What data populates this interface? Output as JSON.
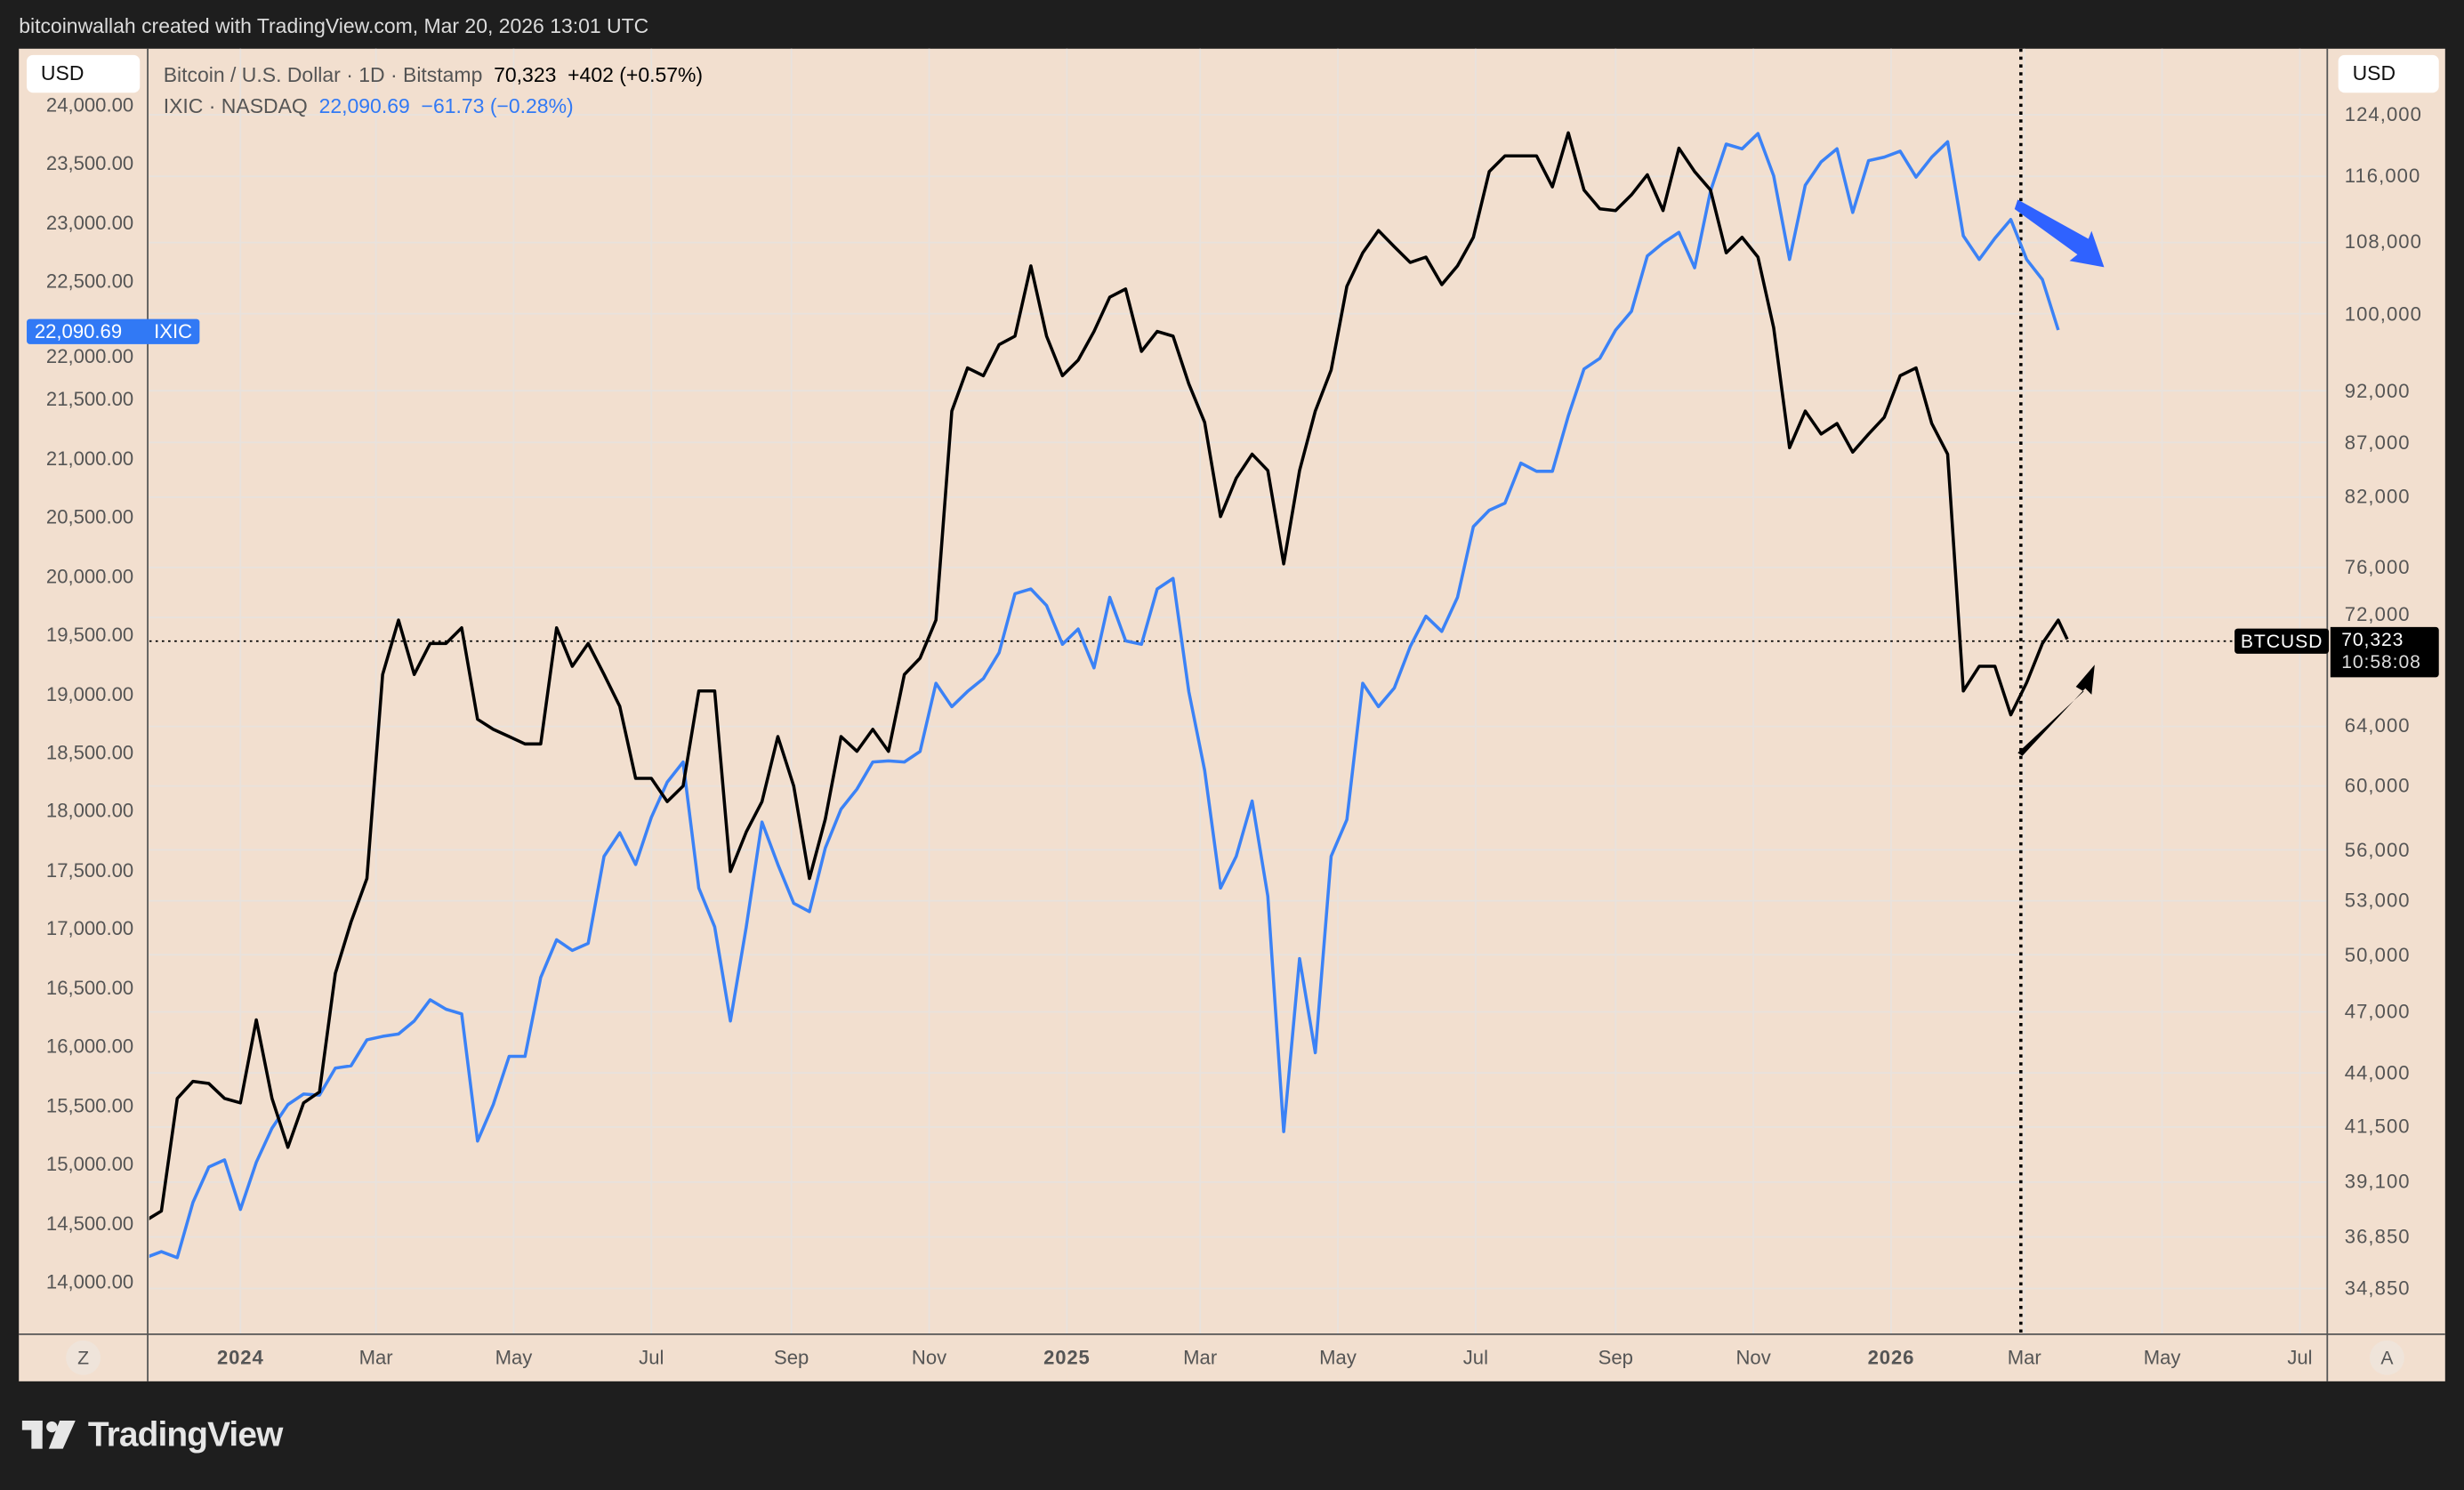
{
  "header": {
    "attribution": "bitcoinwallah created with TradingView.com, Mar 20, 2026 13:01 UTC"
  },
  "left_scale": {
    "currency_button": "USD"
  },
  "right_scale": {
    "currency_button": "USD"
  },
  "legend": {
    "btc": {
      "name": "Bitcoin / U.S. Dollar · 1D · Bitstamp",
      "last": "70,323",
      "change": "+402 (+0.57%)"
    },
    "ixic": {
      "name": "IXIC · NASDAQ",
      "last": "22,090.69",
      "change": "−61.73 (−0.28%)"
    }
  },
  "tags": {
    "ixic_price": "22,090.69",
    "ixic_symbol": "IXIC",
    "btc_symbol": "BTCUSD",
    "btc_price": "70,323",
    "btc_countdown": "10:58:08"
  },
  "time_axis": {
    "left_button": "Z",
    "right_button": "A"
  },
  "footer": {
    "logo": "TradingView"
  },
  "colors": {
    "background": "#f2dfcf",
    "frame": "#1e1e1e",
    "btc_line": "#000000",
    "ixic_line": "#3b82f6",
    "ixic_tag": "#3179f5",
    "arrow_blue": "#2f62ff",
    "arrow_black": "#000000",
    "grid": "#e8e2dd"
  },
  "icons": {
    "down_arrow": "blue-trend-down-arrow",
    "up_arrow": "black-trend-up-arrow",
    "logo": "tradingview-logo"
  },
  "chart_data": {
    "type": "line",
    "grid": true,
    "x": [
      "2023-11-20",
      "2023-11-27",
      "2023-12-04",
      "2023-12-11",
      "2023-12-18",
      "2023-12-25",
      "2024-01-01",
      "2024-01-08",
      "2024-01-15",
      "2024-01-22",
      "2024-01-29",
      "2024-02-05",
      "2024-02-12",
      "2024-02-19",
      "2024-02-26",
      "2024-03-04",
      "2024-03-11",
      "2024-03-18",
      "2024-03-25",
      "2024-04-01",
      "2024-04-08",
      "2024-04-15",
      "2024-04-22",
      "2024-04-29",
      "2024-05-06",
      "2024-05-13",
      "2024-05-20",
      "2024-05-27",
      "2024-06-03",
      "2024-06-10",
      "2024-06-17",
      "2024-06-24",
      "2024-07-01",
      "2024-07-08",
      "2024-07-15",
      "2024-07-22",
      "2024-07-29",
      "2024-08-05",
      "2024-08-12",
      "2024-08-19",
      "2024-08-26",
      "2024-09-02",
      "2024-09-09",
      "2024-09-16",
      "2024-09-23",
      "2024-09-30",
      "2024-10-07",
      "2024-10-14",
      "2024-10-21",
      "2024-10-28",
      "2024-11-04",
      "2024-11-11",
      "2024-11-18",
      "2024-11-25",
      "2024-12-02",
      "2024-12-09",
      "2024-12-16",
      "2024-12-23",
      "2024-12-30",
      "2025-01-06",
      "2025-01-13",
      "2025-01-20",
      "2025-01-27",
      "2025-02-03",
      "2025-02-10",
      "2025-02-17",
      "2025-02-24",
      "2025-03-03",
      "2025-03-10",
      "2025-03-17",
      "2025-03-24",
      "2025-03-31",
      "2025-04-07",
      "2025-04-14",
      "2025-04-21",
      "2025-04-28",
      "2025-05-05",
      "2025-05-12",
      "2025-05-19",
      "2025-05-26",
      "2025-06-02",
      "2025-06-09",
      "2025-06-16",
      "2025-06-23",
      "2025-06-30",
      "2025-07-07",
      "2025-07-14",
      "2025-07-21",
      "2025-07-28",
      "2025-08-04",
      "2025-08-11",
      "2025-08-18",
      "2025-08-25",
      "2025-09-01",
      "2025-09-08",
      "2025-09-15",
      "2025-09-22",
      "2025-09-29",
      "2025-10-06",
      "2025-10-13",
      "2025-10-20",
      "2025-10-27",
      "2025-11-03",
      "2025-11-10",
      "2025-11-17",
      "2025-11-24",
      "2025-12-01",
      "2025-12-08",
      "2025-12-15",
      "2025-12-22",
      "2025-12-29",
      "2026-01-05",
      "2026-01-12",
      "2026-01-19",
      "2026-01-26",
      "2026-02-02",
      "2026-02-09",
      "2026-02-16",
      "2026-02-23",
      "2026-03-02",
      "2026-03-09",
      "2026-03-16",
      "2026-03-20"
    ],
    "series": [
      {
        "name": "BTCUSD",
        "axis": "right",
        "values": [
          37500,
          37900,
          42800,
          43600,
          43500,
          42800,
          42600,
          46600,
          42800,
          40600,
          42600,
          43100,
          49000,
          51800,
          54300,
          67700,
          71800,
          67700,
          70000,
          70000,
          71200,
          64500,
          63800,
          63300,
          62800,
          62800,
          71200,
          68300,
          70000,
          67700,
          65400,
          60500,
          60500,
          59000,
          60000,
          66500,
          66500,
          54700,
          57100,
          59000,
          63300,
          60000,
          54300,
          57900,
          63300,
          62300,
          63800,
          62300,
          67700,
          68900,
          71800,
          90000,
          94300,
          93500,
          96700,
          97600,
          105300,
          97600,
          93500,
          95100,
          98100,
          101800,
          102700,
          96000,
          98100,
          97600,
          92700,
          88900,
          80300,
          83700,
          85900,
          84400,
          76300,
          84400,
          90000,
          94100,
          103000,
          106800,
          109400,
          107500,
          105700,
          106300,
          103200,
          105300,
          108600,
          116600,
          118600,
          118600,
          118600,
          114700,
          121600,
          114300,
          112000,
          111800,
          113700,
          116200,
          111800,
          119600,
          116600,
          114300,
          106800,
          108600,
          106300,
          98500,
          86500,
          90000,
          87800,
          88800,
          86100,
          87800,
          89400,
          93500,
          94300,
          88800,
          85900,
          66500,
          68300,
          68300,
          64800,
          67100,
          70000,
          71800,
          70323
        ]
      },
      {
        "name": "IXIC",
        "axis": "left",
        "values": [
          14210,
          14260,
          14210,
          14680,
          14980,
          15040,
          14620,
          15020,
          15310,
          15510,
          15600,
          15590,
          15820,
          15840,
          16060,
          16090,
          16110,
          16220,
          16400,
          16320,
          16280,
          15200,
          15510,
          15920,
          15920,
          16590,
          16910,
          16820,
          16880,
          17620,
          17820,
          17550,
          17950,
          18250,
          18420,
          17350,
          17020,
          16220,
          17020,
          17910,
          17550,
          17220,
          17150,
          17690,
          18020,
          18190,
          18420,
          18430,
          18420,
          18510,
          19090,
          18890,
          19020,
          19130,
          19350,
          19850,
          19890,
          19750,
          19420,
          19550,
          19220,
          19820,
          19450,
          19420,
          19890,
          19980,
          19020,
          18350,
          17350,
          17620,
          18090,
          17280,
          15280,
          16750,
          15950,
          17620,
          17930,
          19090,
          18890,
          19050,
          19400,
          19660,
          19530,
          19820,
          20420,
          20560,
          20620,
          20960,
          20890,
          20890,
          21360,
          21760,
          21850,
          22090,
          22250,
          22720,
          22830,
          22920,
          22620,
          23270,
          23670,
          23630,
          23760,
          23400,
          22690,
          23320,
          23520,
          23630,
          23090,
          23530,
          23560,
          23610,
          23390,
          23560,
          23690,
          22890,
          22690,
          22870,
          23030,
          22690,
          22520,
          22090.69,
          null
        ]
      }
    ],
    "left_axis": {
      "ticks": [
        "24,000.00",
        "23,500.00",
        "23,000.00",
        "22,500.00",
        "22,000.00",
        "21,500.00",
        "21,000.00",
        "20,500.00",
        "20,000.00",
        "19,500.00",
        "19,000.00",
        "18,500.00",
        "18,000.00",
        "17,500.00",
        "17,000.00",
        "16,500.00",
        "16,000.00",
        "15,500.00",
        "15,000.00",
        "14,500.00",
        "14,000.00"
      ]
    },
    "right_axis": {
      "scale": "log",
      "ticks": [
        "124,000",
        "116,000",
        "108,000",
        "100,000",
        "92,000",
        "87,000",
        "82,000",
        "76,000",
        "72,000",
        "64,000",
        "60,000",
        "56,000",
        "53,000",
        "50,000",
        "47,000",
        "44,000",
        "41,500",
        "39,100",
        "36,850",
        "34,850"
      ]
    },
    "x_ticks": [
      {
        "label": "2024",
        "date": "2024-01-01",
        "year": true
      },
      {
        "label": "Mar",
        "date": "2024-03-01"
      },
      {
        "label": "May",
        "date": "2024-05-01"
      },
      {
        "label": "Jul",
        "date": "2024-07-01"
      },
      {
        "label": "Sep",
        "date": "2024-09-01"
      },
      {
        "label": "Nov",
        "date": "2024-11-01"
      },
      {
        "label": "2025",
        "date": "2025-01-01",
        "year": true
      },
      {
        "label": "Mar",
        "date": "2025-03-01"
      },
      {
        "label": "May",
        "date": "2025-05-01"
      },
      {
        "label": "Jul",
        "date": "2025-07-01"
      },
      {
        "label": "Sep",
        "date": "2025-09-01"
      },
      {
        "label": "Nov",
        "date": "2025-11-01"
      },
      {
        "label": "2026",
        "date": "2026-01-01",
        "year": true
      },
      {
        "label": "Mar",
        "date": "2026-03-01"
      },
      {
        "label": "May",
        "date": "2026-05-01"
      },
      {
        "label": "Jul",
        "date": "2026-07-01"
      }
    ]
  }
}
